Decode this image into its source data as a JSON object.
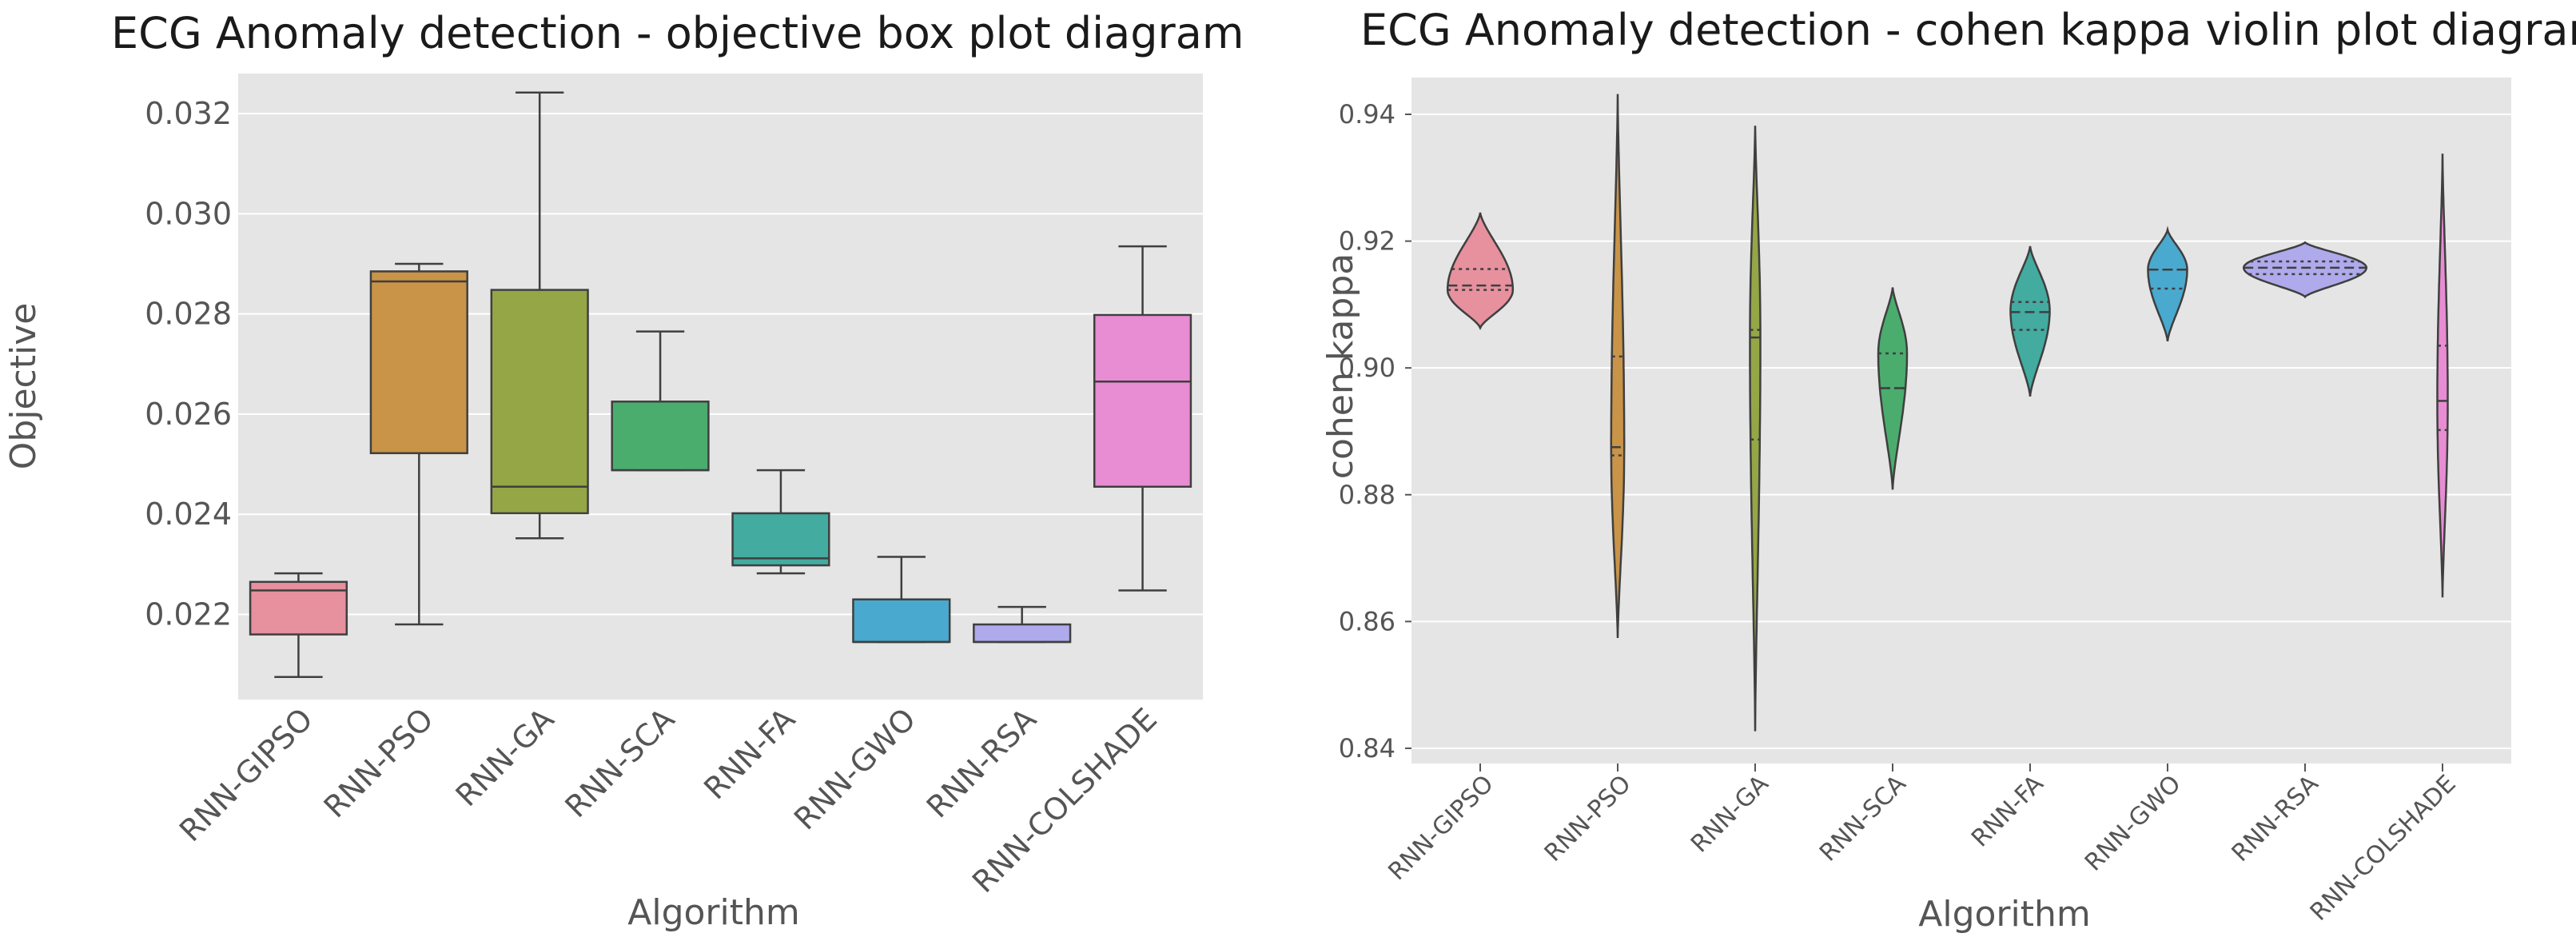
{
  "chart_data": [
    {
      "type": "box",
      "title": "ECG Anomaly detection - objective box plot diagram",
      "xlabel": "Algorithm",
      "ylabel": "Objective",
      "ylim": [
        0.0203,
        0.0328
      ],
      "yticks": [
        "0.022",
        "0.024",
        "0.026",
        "0.028",
        "0.030",
        "0.032"
      ],
      "categories": [
        "RNN-GIPSO",
        "RNN-PSO",
        "RNN-GA",
        "RNN-SCA",
        "RNN-FA",
        "RNN-GWO",
        "RNN-RSA",
        "RNN-COLSHADE"
      ],
      "series": [
        {
          "name": "RNN-GIPSO",
          "color": "#e7909e",
          "whisker_low": 0.02075,
          "q1": 0.0216,
          "median": 0.02248,
          "q3": 0.02265,
          "whisker_high": 0.02282
        },
        {
          "name": "RNN-PSO",
          "color": "#c99448",
          "whisker_low": 0.0218,
          "q1": 0.02522,
          "median": 0.02865,
          "q3": 0.02885,
          "whisker_high": 0.029
        },
        {
          "name": "RNN-GA",
          "color": "#95a646",
          "whisker_low": 0.02352,
          "q1": 0.02402,
          "median": 0.02455,
          "q3": 0.02848,
          "whisker_high": 0.03242
        },
        {
          "name": "RNN-SCA",
          "color": "#4aad6e",
          "whisker_low": 0.02488,
          "q1": 0.02488,
          "median": 0.02488,
          "q3": 0.02625,
          "whisker_high": 0.02765
        },
        {
          "name": "RNN-FA",
          "color": "#43aba0",
          "whisker_low": 0.02282,
          "q1": 0.02298,
          "median": 0.02312,
          "q3": 0.02402,
          "whisker_high": 0.02488
        },
        {
          "name": "RNN-GWO",
          "color": "#4aa9cf",
          "whisker_low": 0.02145,
          "q1": 0.02145,
          "median": 0.02145,
          "q3": 0.0223,
          "whisker_high": 0.02315
        },
        {
          "name": "RNN-RSA",
          "color": "#aeaaec",
          "whisker_low": 0.02145,
          "q1": 0.02145,
          "median": 0.02145,
          "q3": 0.0218,
          "whisker_high": 0.02215
        },
        {
          "name": "RNN-COLSHADE",
          "color": "#e88cd4",
          "whisker_low": 0.02248,
          "q1": 0.02455,
          "median": 0.02665,
          "q3": 0.02798,
          "whisker_high": 0.02935
        }
      ]
    },
    {
      "type": "violin",
      "title": "ECG Anomaly detection - cohen kappa violin plot diagram",
      "xlabel": "Algorithm",
      "ylabel": "cohen kappa",
      "ylim": [
        0.8376,
        0.9458
      ],
      "yticks": [
        "0.84",
        "0.86",
        "0.88",
        "0.90",
        "0.92",
        "0.94"
      ],
      "categories": [
        "RNN-GIPSO",
        "RNN-PSO",
        "RNN-GA",
        "RNN-SCA",
        "RNN-FA",
        "RNN-GWO",
        "RNN-RSA",
        "RNN-COLSHADE"
      ],
      "series": [
        {
          "name": "RNN-GIPSO",
          "color": "#e7909e",
          "min": 0.9063,
          "max": 0.9245,
          "q1": 0.9123,
          "median": 0.913,
          "q3": 0.9156,
          "mode": 0.9123,
          "max_halfwidth": 0.025
        },
        {
          "name": "RNN-PSO",
          "color": "#c99448",
          "min": 0.8574,
          "max": 0.9432,
          "q1": 0.8862,
          "median": 0.8875,
          "q3": 0.9018,
          "mode": 0.8875,
          "max_halfwidth": 0.005
        },
        {
          "name": "RNN-GA",
          "color": "#95a646",
          "min": 0.8427,
          "max": 0.9382,
          "q1": 0.8887,
          "median": 0.9048,
          "q3": 0.906,
          "mode": 0.9048,
          "max_halfwidth": 0.004
        },
        {
          "name": "RNN-SCA",
          "color": "#4aad6e",
          "min": 0.8808,
          "max": 0.9127,
          "q1": 0.8968,
          "median": 0.8968,
          "q3": 0.9023,
          "mode": 0.9023,
          "max_halfwidth": 0.011
        },
        {
          "name": "RNN-FA",
          "color": "#43aba0",
          "min": 0.8955,
          "max": 0.9192,
          "q1": 0.906,
          "median": 0.9088,
          "q3": 0.9104,
          "mode": 0.909,
          "max_halfwidth": 0.015
        },
        {
          "name": "RNN-GWO",
          "color": "#4aa9cf",
          "min": 0.9042,
          "max": 0.9218,
          "q1": 0.9125,
          "median": 0.9155,
          "q3": 0.9155,
          "mode": 0.9155,
          "max_halfwidth": 0.015
        },
        {
          "name": "RNN-RSA",
          "color": "#aeaaec",
          "min": 0.9112,
          "max": 0.9198,
          "q1": 0.9148,
          "median": 0.9158,
          "q3": 0.9168,
          "mode": 0.9158,
          "max_halfwidth": 0.047
        },
        {
          "name": "RNN-COLSHADE",
          "color": "#e88cd4",
          "min": 0.8638,
          "max": 0.9338,
          "q1": 0.8902,
          "median": 0.8948,
          "q3": 0.9035,
          "mode": 0.8948,
          "max_halfwidth": 0.004
        }
      ]
    }
  ]
}
